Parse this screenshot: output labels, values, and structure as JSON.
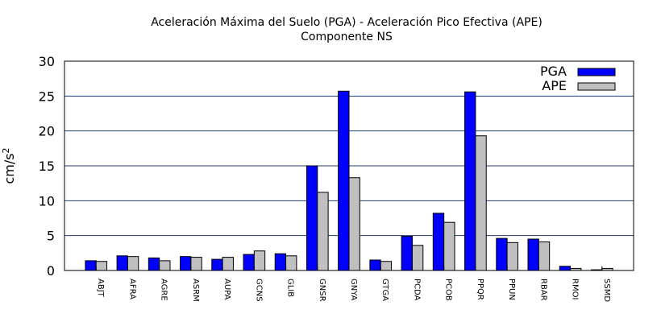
{
  "chart_data": {
    "type": "bar",
    "title": "Aceleración Máxima del Suelo (PGA) -  Aceleración Pico Efectiva (APE)",
    "subtitle": "Componente NS",
    "ylabel": "cm/s",
    "ylabel_sup": "2",
    "xlabel": "",
    "ylim": [
      0,
      30
    ],
    "yticks": [
      0,
      5,
      10,
      15,
      20,
      25,
      30
    ],
    "grid": true,
    "legend_position": "top-right",
    "categories": [
      "ABJT",
      "AFRA",
      "AGRE",
      "ASRM",
      "AUPA",
      "GCNS",
      "GLIB",
      "GNSR",
      "GNYA",
      "GTGA",
      "PCDA",
      "PCOB",
      "PPQR",
      "PPUN",
      "RBAR",
      "RMOI",
      "SSMD"
    ],
    "series": [
      {
        "name": "PGA",
        "color": "#0000ff",
        "values": [
          1.4,
          2.1,
          1.8,
          2.0,
          1.6,
          2.3,
          2.4,
          15.0,
          25.7,
          1.5,
          4.9,
          8.2,
          25.6,
          4.6,
          4.5,
          0.6,
          0.1
        ]
      },
      {
        "name": "APE",
        "color": "#c0c0c0",
        "values": [
          1.3,
          2.0,
          1.4,
          1.9,
          1.9,
          2.8,
          2.1,
          11.2,
          13.3,
          1.3,
          3.6,
          6.9,
          19.3,
          4.0,
          4.1,
          0.3,
          0.3
        ]
      }
    ]
  }
}
